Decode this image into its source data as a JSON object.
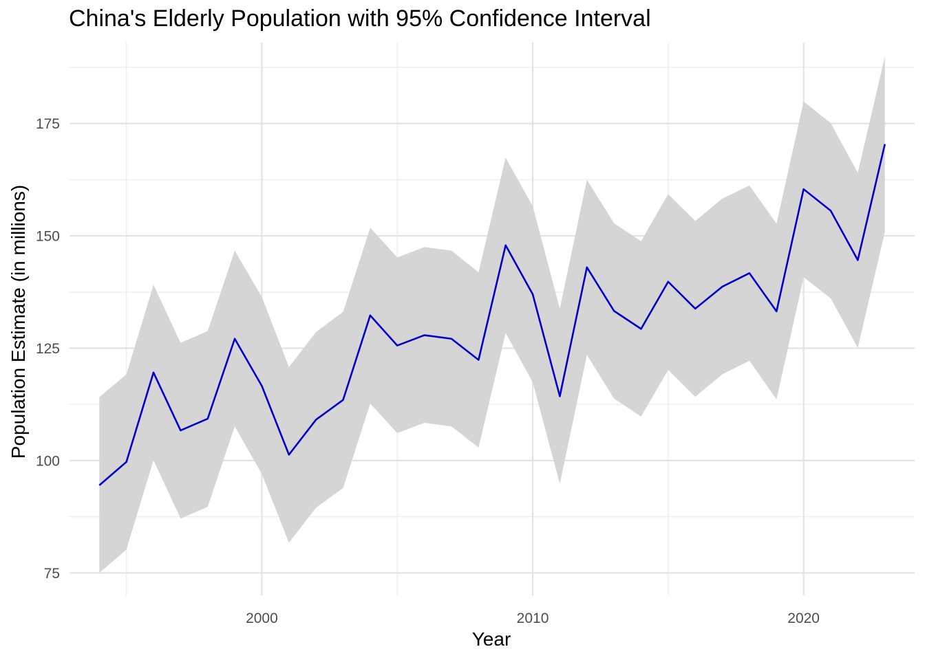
{
  "chart_data": {
    "type": "line",
    "title": "China's Elderly Population with 95% Confidence Interval",
    "xlabel": "Year",
    "ylabel": "Population Estimate (in millions)",
    "xlim": [
      1992.9,
      2024.1
    ],
    "ylim": [
      70,
      193
    ],
    "x_ticks": [
      2000,
      2010,
      2020
    ],
    "x_tick_labels": [
      "2000",
      "2010",
      "2020"
    ],
    "x_minor_ticks": [
      1995,
      2005,
      2015
    ],
    "y_ticks": [
      75,
      100,
      125,
      150,
      175
    ],
    "y_tick_labels": [
      "75",
      "100",
      "125",
      "150",
      "175"
    ],
    "y_minor_ticks": [
      87.5,
      112.5,
      137.5,
      162.5,
      187.5
    ],
    "grid": true,
    "legend": "none",
    "colors": {
      "line": "#0000cc",
      "ribbon": "#d3d3d3"
    },
    "x": [
      1994,
      1995,
      1996,
      1997,
      1998,
      1999,
      2000,
      2001,
      2002,
      2003,
      2004,
      2005,
      2006,
      2007,
      2008,
      2009,
      2010,
      2011,
      2012,
      2013,
      2014,
      2015,
      2016,
      2017,
      2018,
      2019,
      2020,
      2021,
      2022,
      2023
    ],
    "series": [
      {
        "values": [
          94.5,
          99.7,
          119.6,
          106.7,
          109.3,
          127.1,
          116.6,
          101.3,
          109.1,
          113.5,
          132.3,
          125.6,
          127.9,
          127.1,
          122.4,
          147.9,
          137.0,
          114.3,
          143.0,
          133.3,
          129.3,
          139.8,
          133.8,
          138.7,
          141.7,
          133.2,
          160.4,
          155.6,
          144.6,
          170.4
        ],
        "lower": [
          75.0,
          80.2,
          100.1,
          87.1,
          89.7,
          107.6,
          97.0,
          81.7,
          89.5,
          93.9,
          112.7,
          106.1,
          108.4,
          107.6,
          102.9,
          128.4,
          117.4,
          94.8,
          123.5,
          113.8,
          109.8,
          120.2,
          114.2,
          119.2,
          122.2,
          113.6,
          140.8,
          136.1,
          125.1,
          150.9
        ],
        "upper": [
          114.1,
          119.2,
          139.1,
          126.2,
          128.8,
          146.7,
          136.4,
          120.8,
          128.6,
          133.1,
          151.8,
          145.2,
          147.5,
          146.7,
          141.9,
          167.4,
          156.6,
          133.8,
          162.5,
          152.8,
          148.8,
          159.3,
          153.3,
          158.3,
          161.2,
          152.7,
          179.9,
          175.1,
          164.0,
          189.9
        ]
      }
    ]
  }
}
